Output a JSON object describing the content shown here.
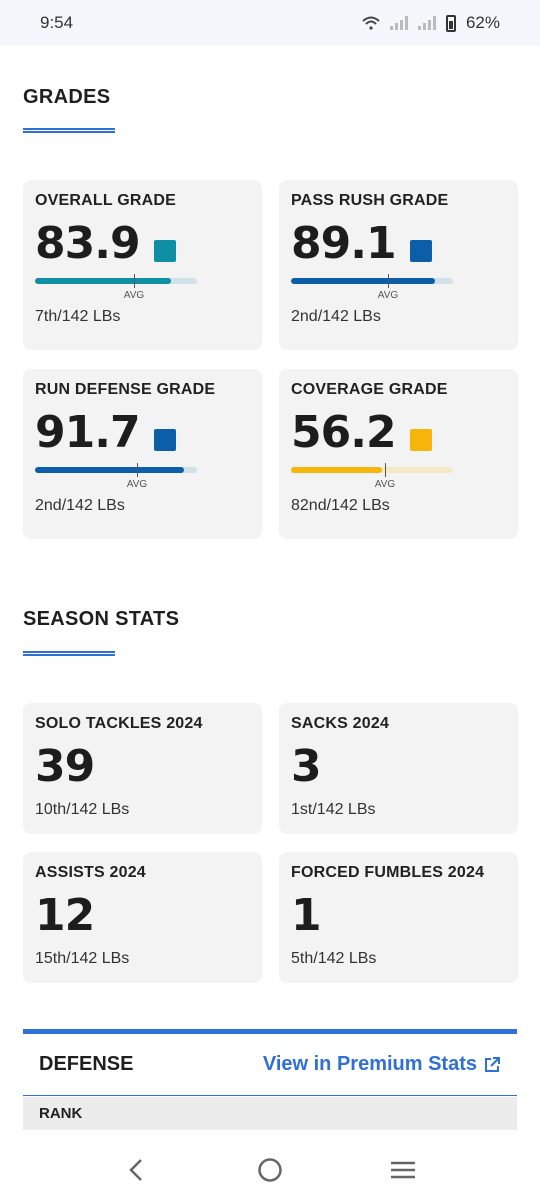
{
  "status_bar": {
    "time": "9:54",
    "battery": "62%"
  },
  "grades_section": {
    "title": "GRADES"
  },
  "grades": [
    {
      "label": "OVERALL GRADE",
      "value": "83.9",
      "color": "#0f8fa3",
      "track_color": "#cfe2ea",
      "fill_fraction": 0.839,
      "avg_fraction": 0.61,
      "avg_label": "AVG",
      "rank": "7th/142 LBs"
    },
    {
      "label": "PASS RUSH GRADE",
      "value": "89.1",
      "color": "#0d5ea8",
      "track_color": "#cfe2ea",
      "fill_fraction": 0.891,
      "avg_fraction": 0.6,
      "avg_label": "AVG",
      "rank": "2nd/142 LBs"
    },
    {
      "label": "RUN DEFENSE GRADE",
      "value": "91.7",
      "color": "#0d5ea8",
      "track_color": "#cfe2ea",
      "fill_fraction": 0.917,
      "avg_fraction": 0.63,
      "avg_label": "AVG",
      "rank": "2nd/142 LBs"
    },
    {
      "label": "COVERAGE GRADE",
      "value": "56.2",
      "color": "#f5b50a",
      "track_color": "#f5e9c4",
      "fill_fraction": 0.562,
      "avg_fraction": 0.58,
      "avg_label": "AVG",
      "rank": "82nd/142 LBs"
    }
  ],
  "season_section": {
    "title": "SEASON STATS"
  },
  "season_stats": [
    {
      "label": "SOLO TACKLES 2024",
      "value": "39",
      "rank": "10th/142 LBs"
    },
    {
      "label": "SACKS 2024",
      "value": "3",
      "rank": "1st/142 LBs"
    },
    {
      "label": "ASSISTS 2024",
      "value": "12",
      "rank": "15th/142 LBs"
    },
    {
      "label": "FORCED FUMBLES 2024",
      "value": "1",
      "rank": "5th/142 LBs"
    }
  ],
  "defense": {
    "title": "DEFENSE",
    "premium_link": "View in Premium Stats",
    "rank_header": "RANK"
  },
  "accent_color": "#2f6fd6"
}
